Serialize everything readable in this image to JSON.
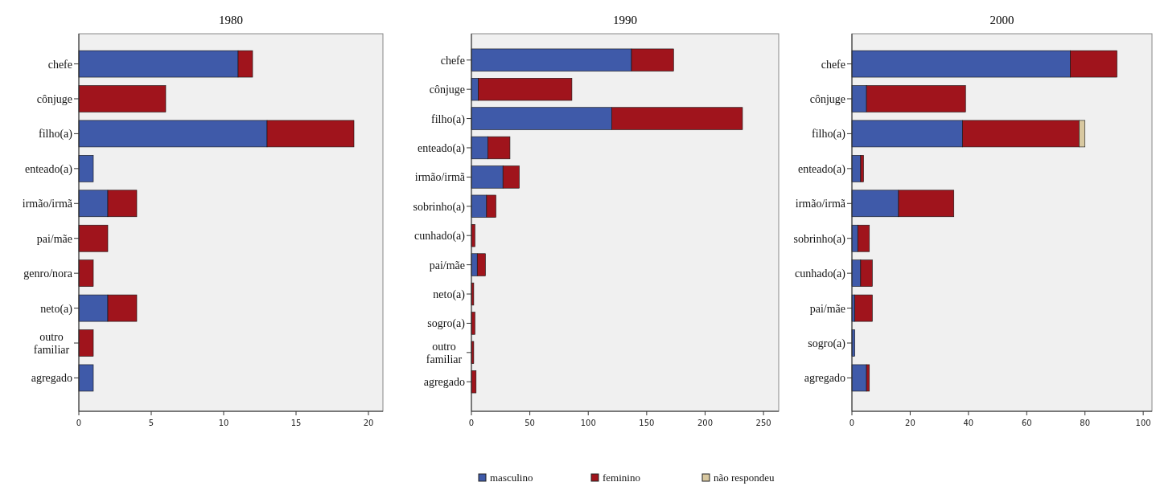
{
  "chart_data": [
    {
      "type": "bar",
      "orientation": "horizontal",
      "stacked": true,
      "title": "1980",
      "legend": "bottom",
      "categories": [
        "chefe",
        "cônjuge",
        "filho(a)",
        "enteado(a)",
        "irmão/irmã",
        "pai/mãe",
        "genro/nora",
        "neto(a)",
        "outro familiar",
        "agregado"
      ],
      "series": [
        {
          "name": "masculino",
          "color": "#3f5aa9",
          "values": [
            11,
            0,
            13,
            1,
            2,
            0,
            0,
            2,
            0,
            1
          ]
        },
        {
          "name": "feminino",
          "color": "#a0141c",
          "values": [
            1,
            6,
            6,
            0,
            2,
            2,
            1,
            2,
            1,
            0
          ]
        }
      ],
      "xlim": [
        0,
        21
      ],
      "xticks": [
        0,
        5,
        10,
        15,
        20
      ]
    },
    {
      "type": "bar",
      "orientation": "horizontal",
      "stacked": true,
      "title": "1990",
      "legend": "bottom",
      "categories": [
        "chefe",
        "cônjuge",
        "filho(a)",
        "enteado(a)",
        "irmão/irmã",
        "sobrinho(a)",
        "cunhado(a)",
        "pai/mãe",
        "neto(a)",
        "sogro(a)",
        "outro familiar",
        "agregado"
      ],
      "series": [
        {
          "name": "masculino",
          "color": "#3f5aa9",
          "values": [
            137,
            6,
            120,
            14,
            27,
            13,
            null,
            5,
            null,
            0,
            null,
            0
          ]
        },
        {
          "name": "feminino",
          "color": "#a0141c",
          "values": [
            36,
            80,
            112,
            19,
            14,
            8,
            3,
            7,
            2,
            3,
            2,
            4
          ]
        }
      ],
      "xlim": [
        0,
        263
      ],
      "xticks": [
        0,
        50,
        100,
        150,
        200,
        250
      ]
    },
    {
      "type": "bar",
      "orientation": "horizontal",
      "stacked": true,
      "title": "2000",
      "legend": "bottom",
      "categories": [
        "chefe",
        "cônjuge",
        "filho(a)",
        "enteado(a)",
        "irmão/irmã",
        "sobrinho(a)",
        "cunhado(a)",
        "pai/mãe",
        "sogro(a)",
        "agregado"
      ],
      "series": [
        {
          "name": "masculino",
          "color": "#3f5aa9",
          "values": [
            75,
            5,
            38,
            3,
            16,
            2,
            3,
            1,
            1,
            5
          ]
        },
        {
          "name": "feminino",
          "color": "#a0141c",
          "values": [
            16,
            34,
            40,
            1,
            19,
            4,
            4,
            6,
            0,
            1
          ]
        },
        {
          "name": "não respondeu",
          "color": "#d8c8a0",
          "values": [
            0,
            0,
            2,
            0,
            0,
            0,
            0,
            0,
            0,
            0
          ]
        }
      ],
      "xlim": [
        0,
        103
      ],
      "xticks": [
        0,
        20,
        40,
        60,
        80,
        100
      ]
    }
  ]
}
